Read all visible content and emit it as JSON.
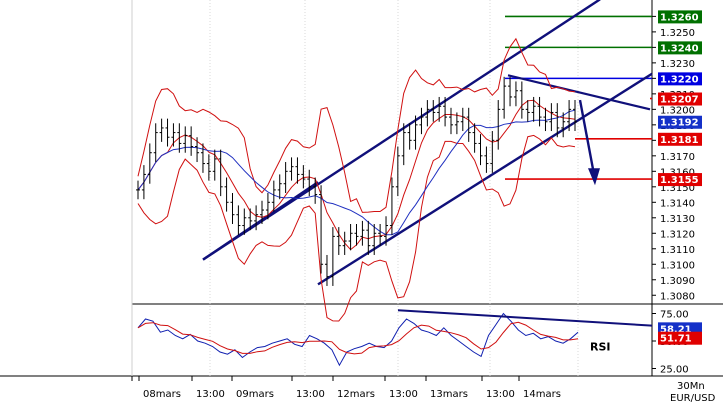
{
  "chart_data": {
    "type": "candlestick",
    "symbol": "EUR/USD",
    "timeframe": "30Mn",
    "indicator_label": "RSI",
    "price_axis": {
      "ylim": [
        1.3075,
        1.3268
      ],
      "tick_labels": [
        "1.3260",
        "1.3250",
        "1.3240",
        "1.3230",
        "1.3220",
        "1.3210",
        "1.3200",
        "1.3190",
        "1.3180",
        "1.3170",
        "1.3160",
        "1.3150",
        "1.3140",
        "1.3130",
        "1.3120",
        "1.3110",
        "1.3100",
        "1.3090",
        "1.3080"
      ]
    },
    "rsi_axis": {
      "ylim": [
        20,
        80
      ],
      "tick_labels": [
        "75.00",
        "50.00",
        "25.00"
      ]
    },
    "x_axis_labels": [
      "08mars",
      "13:00",
      "09mars",
      "13:00",
      "12mars",
      "13:00",
      "13mars",
      "13:00",
      "14mars"
    ],
    "current_price": "1.3192",
    "current_rsi": "58.21",
    "rsi_secondary": "51.71",
    "levels": [
      {
        "label": "1.3260",
        "value": 1.326,
        "color": "#007000",
        "role": "target"
      },
      {
        "label": "1.3240",
        "value": 1.324,
        "color": "#007000",
        "role": "target"
      },
      {
        "label": "1.3220",
        "value": 1.322,
        "color": "#0000e0",
        "role": "pivot"
      },
      {
        "label": "1.3207",
        "value": 1.3207,
        "color": "#e00000",
        "role": "support"
      },
      {
        "label": "1.3181",
        "value": 1.3181,
        "color": "#e00000",
        "role": "support"
      },
      {
        "label": "1.3155",
        "value": 1.3155,
        "color": "#e00000",
        "role": "support"
      }
    ],
    "close_series": [
      1.3148,
      1.3158,
      1.3172,
      1.3185,
      1.3188,
      1.3182,
      1.3185,
      1.3178,
      1.3183,
      1.3176,
      1.3172,
      1.3165,
      1.316,
      1.3168,
      1.315,
      1.314,
      1.3132,
      1.3125,
      1.313,
      1.3128,
      1.3132,
      1.3135,
      1.314,
      1.3148,
      1.3152,
      1.316,
      1.3163,
      1.3158,
      1.3155,
      1.315,
      1.3145,
      1.31,
      1.3092,
      1.3118,
      1.3112,
      1.3115,
      1.312,
      1.3118,
      1.3122,
      1.3112,
      1.312,
      1.3118,
      1.3125,
      1.315,
      1.317,
      1.3185,
      1.318,
      1.319,
      1.3195,
      1.32,
      1.3198,
      1.3202,
      1.3195,
      1.319,
      1.3192,
      1.3195,
      1.3185,
      1.3178,
      1.317,
      1.3165,
      1.318,
      1.32,
      1.3215,
      1.3208,
      1.3212,
      1.32,
      1.3198,
      1.3202,
      1.3195,
      1.3192,
      1.3198,
      1.3188,
      1.3192,
      1.32,
      1.3192
    ],
    "rsi_series": [
      62,
      70,
      68,
      58,
      60,
      55,
      52,
      56,
      50,
      48,
      45,
      40,
      38,
      42,
      35,
      40,
      44,
      45,
      48,
      50,
      52,
      47,
      45,
      55,
      52,
      48,
      42,
      28,
      40,
      43,
      45,
      48,
      45,
      44,
      50,
      62,
      70,
      66,
      60,
      58,
      55,
      62,
      55,
      50,
      45,
      40,
      36,
      55,
      65,
      75,
      68,
      60,
      55,
      57,
      52,
      54,
      50,
      48,
      52,
      58
    ]
  }
}
